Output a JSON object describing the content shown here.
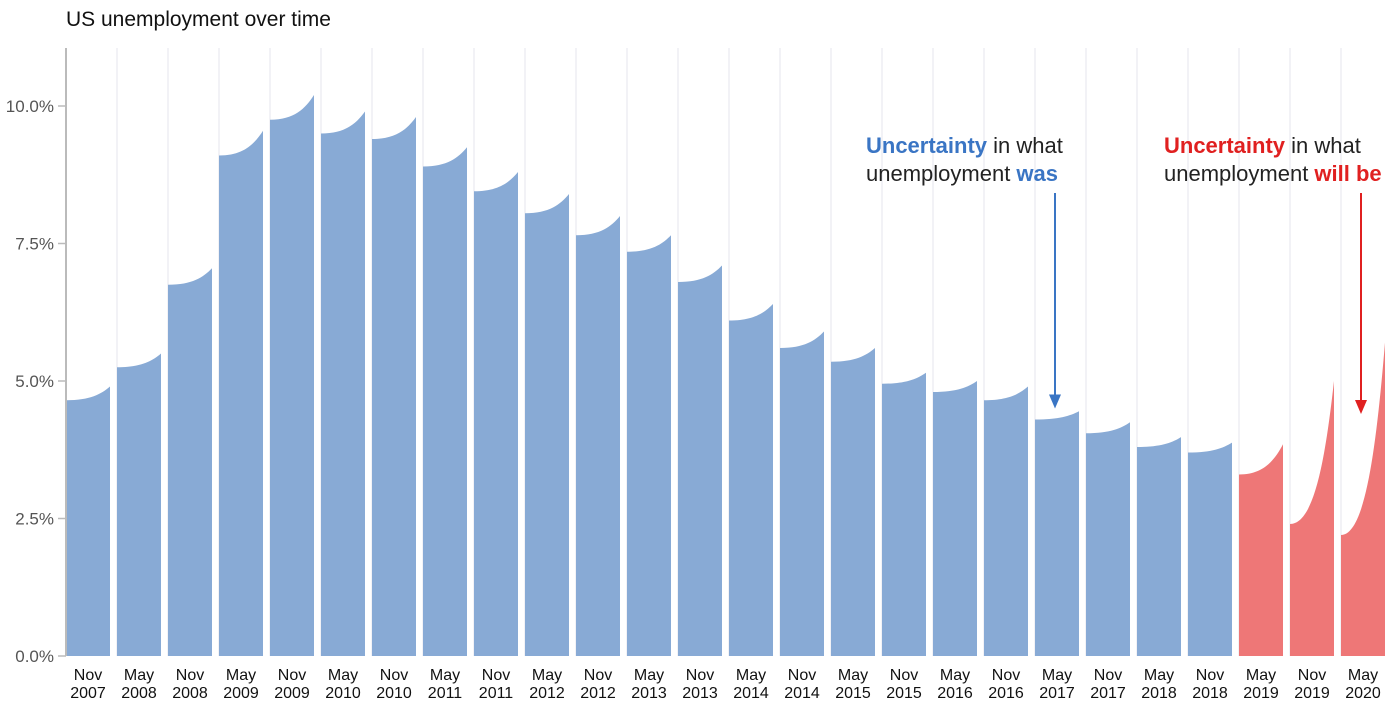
{
  "chart_data": {
    "type": "area",
    "title": "US unemployment over time",
    "xlabel": "",
    "ylabel": "",
    "ylim": [
      0,
      11
    ],
    "yticks": [
      0,
      2.5,
      5,
      7.5,
      10
    ],
    "ytick_labels": [
      "0.0%",
      "2.5%",
      "5.0%",
      "7.5%",
      "10.0%"
    ],
    "grid": true,
    "categories": [
      {
        "top": "Nov",
        "bottom": "2007"
      },
      {
        "top": "May",
        "bottom": "2008"
      },
      {
        "top": "Nov",
        "bottom": "2008"
      },
      {
        "top": "May",
        "bottom": "2009"
      },
      {
        "top": "Nov",
        "bottom": "2009"
      },
      {
        "top": "May",
        "bottom": "2010"
      },
      {
        "top": "Nov",
        "bottom": "2010"
      },
      {
        "top": "May",
        "bottom": "2011"
      },
      {
        "top": "Nov",
        "bottom": "2011"
      },
      {
        "top": "May",
        "bottom": "2012"
      },
      {
        "top": "Nov",
        "bottom": "2012"
      },
      {
        "top": "May",
        "bottom": "2013"
      },
      {
        "top": "Nov",
        "bottom": "2013"
      },
      {
        "top": "May",
        "bottom": "2014"
      },
      {
        "top": "Nov",
        "bottom": "2014"
      },
      {
        "top": "May",
        "bottom": "2015"
      },
      {
        "top": "Nov",
        "bottom": "2015"
      },
      {
        "top": "May",
        "bottom": "2016"
      },
      {
        "top": "Nov",
        "bottom": "2016"
      },
      {
        "top": "May",
        "bottom": "2017"
      },
      {
        "top": "Nov",
        "bottom": "2017"
      },
      {
        "top": "May",
        "bottom": "2018"
      },
      {
        "top": "Nov",
        "bottom": "2018"
      },
      {
        "top": "May",
        "bottom": "2019"
      },
      {
        "top": "Nov",
        "bottom": "2019"
      },
      {
        "top": "May",
        "bottom": "2020"
      }
    ],
    "series": [
      {
        "kind": "past",
        "color": "#88aad5",
        "values": [
          {
            "low": 4.65,
            "high": 4.9
          },
          {
            "low": 5.25,
            "high": 5.5
          },
          {
            "low": 6.75,
            "high": 7.05
          },
          {
            "low": 9.1,
            "high": 9.55
          },
          {
            "low": 9.75,
            "high": 10.2
          },
          {
            "low": 9.5,
            "high": 9.9
          },
          {
            "low": 9.4,
            "high": 9.8
          },
          {
            "low": 8.9,
            "high": 9.25
          },
          {
            "low": 8.45,
            "high": 8.8
          },
          {
            "low": 8.05,
            "high": 8.4
          },
          {
            "low": 7.65,
            "high": 8.0
          },
          {
            "low": 7.35,
            "high": 7.65
          },
          {
            "low": 6.8,
            "high": 7.1
          },
          {
            "low": 6.1,
            "high": 6.4
          },
          {
            "low": 5.6,
            "high": 5.9
          },
          {
            "low": 5.35,
            "high": 5.6
          },
          {
            "low": 4.95,
            "high": 5.15
          },
          {
            "low": 4.8,
            "high": 5.0
          },
          {
            "low": 4.65,
            "high": 4.9
          },
          {
            "low": 4.3,
            "high": 4.45
          },
          {
            "low": 4.05,
            "high": 4.25
          },
          {
            "low": 3.8,
            "high": 3.98
          },
          {
            "low": 3.7,
            "high": 3.88
          }
        ]
      },
      {
        "kind": "future",
        "color": "#ee7777",
        "values": [
          {
            "low": 3.3,
            "high": 3.85
          },
          {
            "low": 2.4,
            "high": 5.0
          },
          {
            "low": 2.2,
            "high": 5.7
          }
        ]
      }
    ],
    "annotations": [
      {
        "id": "was",
        "color": "#3a75c4",
        "line1_bold": "Uncertainty",
        "line1_rest": " in what",
        "line2_rest": "unemployment ",
        "line2_bold": "was",
        "arrow_to": {
          "category_index": 19,
          "value": 4.5
        }
      },
      {
        "id": "will",
        "color": "#e02020",
        "line1_bold": "Uncertainty",
        "line1_rest": " in what",
        "line2_rest": "unemployment ",
        "line2_bold": "will be",
        "arrow_to": {
          "category_index": 25,
          "value": 4.4
        }
      }
    ]
  }
}
